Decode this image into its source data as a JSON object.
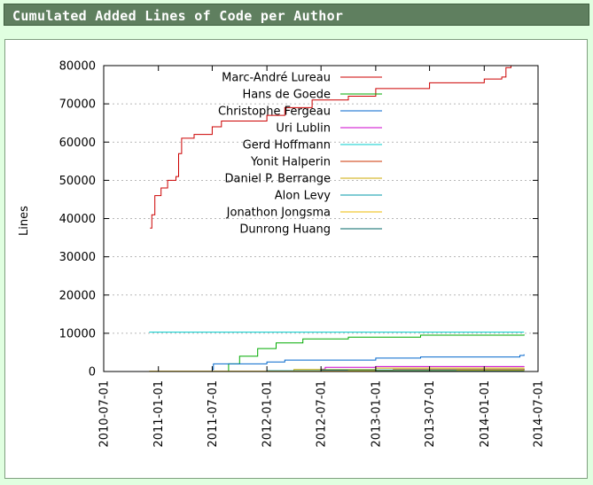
{
  "page": {
    "title": "Cumulated Added Lines of Code per Author"
  },
  "colors": {
    "header_bg": "#5f7f5f",
    "page_bg": "#e0ffe0",
    "series": [
      "#cc0000",
      "#00aa00",
      "#0066cc",
      "#cc00cc",
      "#00cccc",
      "#cc3300",
      "#ccaa00",
      "#0099aa",
      "#eebb00",
      "#006666"
    ]
  },
  "chart_data": {
    "type": "line",
    "title": "",
    "xlabel": "",
    "ylabel": "Lines",
    "grid": "horizontal",
    "legend_position": "top-center",
    "ylim": [
      0,
      80000
    ],
    "xlim": [
      "2010-07-01",
      "2014-07-01"
    ],
    "yticks": [
      "0",
      "10000",
      "20000",
      "30000",
      "40000",
      "50000",
      "60000",
      "70000",
      "80000"
    ],
    "xticks": [
      "2010-07-01",
      "2011-01-01",
      "2011-07-01",
      "2012-01-01",
      "2012-07-01",
      "2013-01-01",
      "2013-07-01",
      "2014-01-01",
      "2014-07-01"
    ],
    "series": [
      {
        "name": "Marc-André Lureau",
        "points": [
          [
            "2010-12-04",
            37500
          ],
          [
            "2010-12-10",
            41000
          ],
          [
            "2010-12-20",
            46000
          ],
          [
            "2011-01-10",
            48000
          ],
          [
            "2011-02-01",
            50000
          ],
          [
            "2011-03-01",
            51000
          ],
          [
            "2011-03-10",
            57000
          ],
          [
            "2011-03-20",
            61000
          ],
          [
            "2011-05-01",
            62000
          ],
          [
            "2011-07-01",
            64000
          ],
          [
            "2011-08-01",
            65500
          ],
          [
            "2012-01-01",
            67000
          ],
          [
            "2012-03-01",
            69000
          ],
          [
            "2012-06-01",
            71000
          ],
          [
            "2012-10-01",
            72000
          ],
          [
            "2013-01-01",
            74000
          ],
          [
            "2013-07-01",
            75500
          ],
          [
            "2014-01-01",
            76500
          ],
          [
            "2014-03-01",
            77000
          ],
          [
            "2014-03-15",
            79500
          ],
          [
            "2014-04-01",
            80000
          ]
        ]
      },
      {
        "name": "Hans de Goede",
        "points": [
          [
            "2011-08-20",
            0
          ],
          [
            "2011-08-25",
            2000
          ],
          [
            "2011-10-01",
            4000
          ],
          [
            "2011-12-01",
            6000
          ],
          [
            "2012-02-01",
            7500
          ],
          [
            "2012-05-01",
            8500
          ],
          [
            "2012-10-01",
            9000
          ],
          [
            "2013-06-01",
            9500
          ],
          [
            "2014-05-15",
            9700
          ]
        ]
      },
      {
        "name": "Christophe Fergeau",
        "points": [
          [
            "2011-07-01",
            500
          ],
          [
            "2011-07-05",
            2000
          ],
          [
            "2012-01-01",
            2500
          ],
          [
            "2012-03-01",
            3000
          ],
          [
            "2013-01-01",
            3500
          ],
          [
            "2013-06-01",
            3800
          ],
          [
            "2014-05-01",
            4200
          ],
          [
            "2014-05-15",
            4500
          ]
        ]
      },
      {
        "name": "Uri Lublin",
        "points": [
          [
            "2011-01-01",
            0
          ],
          [
            "2012-07-01",
            600
          ],
          [
            "2012-07-15",
            1100
          ],
          [
            "2013-01-01",
            1300
          ],
          [
            "2014-05-15",
            1400
          ]
        ]
      },
      {
        "name": "Gerd Hoffmann",
        "points": [
          [
            "2010-12-01",
            10300
          ],
          [
            "2014-05-15",
            10300
          ]
        ]
      },
      {
        "name": "Yonit Halperin",
        "points": [
          [
            "2011-01-01",
            0
          ],
          [
            "2012-07-01",
            300
          ],
          [
            "2013-03-01",
            500
          ],
          [
            "2014-05-15",
            700
          ]
        ]
      },
      {
        "name": "Daniel P. Berrange",
        "points": [
          [
            "2011-01-01",
            0
          ],
          [
            "2012-04-01",
            500
          ],
          [
            "2013-01-01",
            900
          ],
          [
            "2014-05-15",
            1000
          ]
        ]
      },
      {
        "name": "Alon Levy",
        "points": [
          [
            "2010-12-01",
            0
          ],
          [
            "2012-01-01",
            200
          ],
          [
            "2012-07-01",
            400
          ],
          [
            "2014-05-15",
            500
          ]
        ]
      },
      {
        "name": "Jonathon Jongsma",
        "points": [
          [
            "2010-12-01",
            100
          ],
          [
            "2012-10-01",
            200
          ],
          [
            "2013-10-01",
            300
          ],
          [
            "2014-05-15",
            350
          ]
        ]
      },
      {
        "name": "Dunrong Huang",
        "points": [
          [
            "2012-07-01",
            0
          ],
          [
            "2013-01-01",
            100
          ],
          [
            "2014-05-15",
            150
          ]
        ]
      }
    ]
  }
}
